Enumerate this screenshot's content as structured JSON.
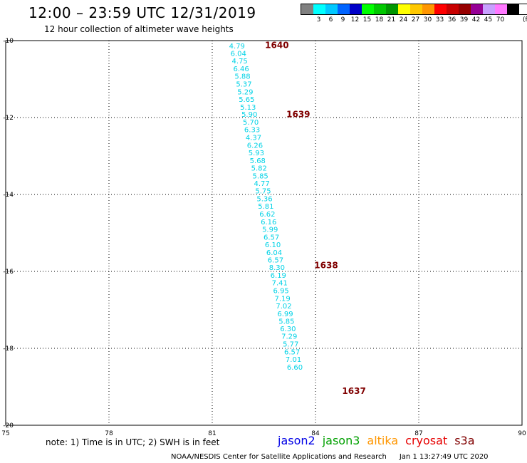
{
  "header": {
    "title": "12:00 – 23:59 UTC 12/31/2019",
    "subtitle": "12 hour collection of altimeter wave heights"
  },
  "legend": {
    "unit": "(ft)",
    "bins": [
      {
        "color": "#808080",
        "label": ""
      },
      {
        "color": "#00ffff",
        "label": "3"
      },
      {
        "color": "#00c8ff",
        "label": "6"
      },
      {
        "color": "#0064ff",
        "label": "9"
      },
      {
        "color": "#0000c8",
        "label": "12"
      },
      {
        "color": "#00ff00",
        "label": "15"
      },
      {
        "color": "#00c800",
        "label": "18"
      },
      {
        "color": "#009600",
        "label": "21"
      },
      {
        "color": "#ffff00",
        "label": "24"
      },
      {
        "color": "#ffc800",
        "label": "27"
      },
      {
        "color": "#ff9600",
        "label": "30"
      },
      {
        "color": "#ff0000",
        "label": "33"
      },
      {
        "color": "#c80000",
        "label": "36"
      },
      {
        "color": "#960000",
        "label": "39"
      },
      {
        "color": "#960096",
        "label": "42"
      },
      {
        "color": "#c8a0ff",
        "label": "45"
      },
      {
        "color": "#ff78ff",
        "label": "70"
      },
      {
        "color": "#000000",
        "label": ""
      }
    ]
  },
  "map": {
    "lon_range": [
      75,
      90
    ],
    "lat_range": [
      -20,
      -10
    ],
    "lon_ticks": [
      "75",
      "78",
      "81",
      "84",
      "87",
      "90"
    ],
    "lat_ticks": [
      "-10",
      "-12",
      "-14",
      "-16",
      "-18",
      "-20"
    ],
    "grid": "dotted",
    "track_color": "#00d2e6",
    "pass_color": "#800000",
    "observations": [
      {
        "lon": 81.72,
        "lat": -10.13,
        "value": "4.79"
      },
      {
        "lon": 81.76,
        "lat": -10.32,
        "value": "6.04"
      },
      {
        "lon": 81.8,
        "lat": -10.52,
        "value": "4.75"
      },
      {
        "lon": 81.84,
        "lat": -10.72,
        "value": "6.46"
      },
      {
        "lon": 81.88,
        "lat": -10.92,
        "value": "5.88"
      },
      {
        "lon": 81.92,
        "lat": -11.12,
        "value": "5.37"
      },
      {
        "lon": 81.96,
        "lat": -11.32,
        "value": "5.29"
      },
      {
        "lon": 82.0,
        "lat": -11.52,
        "value": "5.65"
      },
      {
        "lon": 82.04,
        "lat": -11.72,
        "value": "5.13"
      },
      {
        "lon": 82.08,
        "lat": -11.91,
        "value": "5.90"
      },
      {
        "lon": 82.12,
        "lat": -12.11,
        "value": "5.70"
      },
      {
        "lon": 82.16,
        "lat": -12.31,
        "value": "6.33"
      },
      {
        "lon": 82.2,
        "lat": -12.51,
        "value": "4.37"
      },
      {
        "lon": 82.24,
        "lat": -12.71,
        "value": "6.26"
      },
      {
        "lon": 82.28,
        "lat": -12.91,
        "value": "5.93"
      },
      {
        "lon": 82.32,
        "lat": -13.11,
        "value": "5.68"
      },
      {
        "lon": 82.36,
        "lat": -13.31,
        "value": "5.82"
      },
      {
        "lon": 82.4,
        "lat": -13.51,
        "value": "5.85"
      },
      {
        "lon": 82.44,
        "lat": -13.7,
        "value": "4.77"
      },
      {
        "lon": 82.48,
        "lat": -13.9,
        "value": "5.75"
      },
      {
        "lon": 82.52,
        "lat": -14.1,
        "value": "5.36"
      },
      {
        "lon": 82.56,
        "lat": -14.3,
        "value": "5.81"
      },
      {
        "lon": 82.6,
        "lat": -14.5,
        "value": "6.62"
      },
      {
        "lon": 82.64,
        "lat": -14.7,
        "value": "6.16"
      },
      {
        "lon": 82.68,
        "lat": -14.9,
        "value": "5.99"
      },
      {
        "lon": 82.72,
        "lat": -15.1,
        "value": "6.57"
      },
      {
        "lon": 82.76,
        "lat": -15.3,
        "value": "6.10"
      },
      {
        "lon": 82.8,
        "lat": -15.5,
        "value": "6.04"
      },
      {
        "lon": 82.84,
        "lat": -15.69,
        "value": "6.57"
      },
      {
        "lon": 82.88,
        "lat": -15.89,
        "value": "8.30"
      },
      {
        "lon": 82.92,
        "lat": -16.09,
        "value": "6.19"
      },
      {
        "lon": 82.96,
        "lat": -16.29,
        "value": "7.41"
      },
      {
        "lon": 83.0,
        "lat": -16.49,
        "value": "6.95"
      },
      {
        "lon": 83.04,
        "lat": -16.69,
        "value": "7.19"
      },
      {
        "lon": 83.08,
        "lat": -16.89,
        "value": "7.02"
      },
      {
        "lon": 83.12,
        "lat": -17.09,
        "value": "6.99"
      },
      {
        "lon": 83.16,
        "lat": -17.29,
        "value": "5.85"
      },
      {
        "lon": 83.2,
        "lat": -17.48,
        "value": "6.30"
      },
      {
        "lon": 83.24,
        "lat": -17.68,
        "value": "7.29"
      },
      {
        "lon": 83.28,
        "lat": -17.88,
        "value": "5.77"
      },
      {
        "lon": 83.32,
        "lat": -18.08,
        "value": "6.57"
      },
      {
        "lon": 83.36,
        "lat": -18.28,
        "value": "7.01"
      },
      {
        "lon": 83.4,
        "lat": -18.48,
        "value": "6.60"
      }
    ],
    "pass_labels": [
      {
        "lon": 82.88,
        "lat": -10.12,
        "text": "1640"
      },
      {
        "lon": 83.5,
        "lat": -11.92,
        "text": "1639"
      },
      {
        "lon": 84.31,
        "lat": -15.84,
        "text": "1638"
      },
      {
        "lon": 85.12,
        "lat": -19.11,
        "text": "1637"
      }
    ]
  },
  "note": "note: 1) Time is in UTC; 2) SWH is in feet",
  "satellites": [
    {
      "name": "jason2",
      "color": "#0000e6"
    },
    {
      "name": "jason3",
      "color": "#00a000"
    },
    {
      "name": "altika",
      "color": "#ff9600"
    },
    {
      "name": "cryosat",
      "color": "#e60000"
    },
    {
      "name": "s3a",
      "color": "#800000"
    }
  ],
  "footer": {
    "credit": "NOAA/NESDIS Center for Satellite Applications and Research",
    "timestamp": "Jan  1 13:27:49 UTC 2020"
  }
}
